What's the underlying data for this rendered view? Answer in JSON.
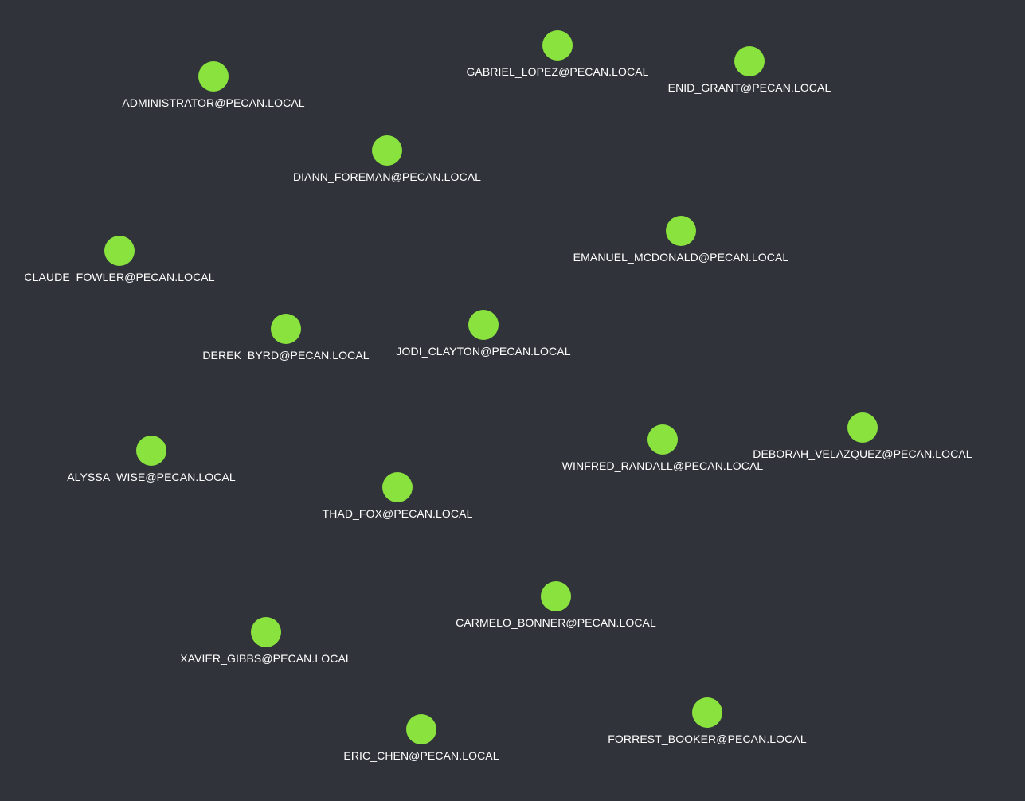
{
  "graph": {
    "node_color": "#8ae23e",
    "background_color": "#30343a",
    "label_color": "#ffffff",
    "node_icon": "user-node-icon",
    "nodes": [
      {
        "label": "GABRIEL_LOPEZ@PECAN.LOCAL"
      },
      {
        "label": "ENID_GRANT@PECAN.LOCAL"
      },
      {
        "label": "ADMINISTRATOR@PECAN.LOCAL"
      },
      {
        "label": "DIANN_FOREMAN@PECAN.LOCAL"
      },
      {
        "label": "EMANUEL_MCDONALD@PECAN.LOCAL"
      },
      {
        "label": "CLAUDE_FOWLER@PECAN.LOCAL"
      },
      {
        "label": "DEREK_BYRD@PECAN.LOCAL"
      },
      {
        "label": "JODI_CLAYTON@PECAN.LOCAL"
      },
      {
        "label": "DEBORAH_VELAZQUEZ@PECAN.LOCAL"
      },
      {
        "label": "WINFRED_RANDALL@PECAN.LOCAL"
      },
      {
        "label": "ALYSSA_WISE@PECAN.LOCAL"
      },
      {
        "label": "THAD_FOX@PECAN.LOCAL"
      },
      {
        "label": "CARMELO_BONNER@PECAN.LOCAL"
      },
      {
        "label": "XAVIER_GIBBS@PECAN.LOCAL"
      },
      {
        "label": "FORREST_BOOKER@PECAN.LOCAL"
      },
      {
        "label": "ERIC_CHEN@PECAN.LOCAL"
      }
    ]
  }
}
